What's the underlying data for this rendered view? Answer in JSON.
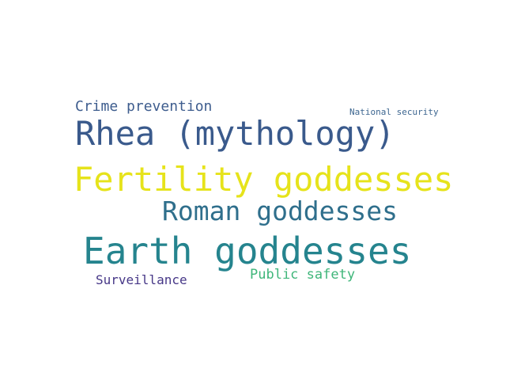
{
  "words": [
    {
      "id": "crime",
      "text": "Crime prevention",
      "color": "#3e5d8e"
    },
    {
      "id": "national",
      "text": "National security",
      "color": "#3d6690"
    },
    {
      "id": "rhea",
      "text": "Rhea (mythology)",
      "color": "#3a5a8c"
    },
    {
      "id": "fertility",
      "text": "Fertility goddesses",
      "color": "#e6e31b"
    },
    {
      "id": "roman",
      "text": "Roman goddesses",
      "color": "#2f6f8c"
    },
    {
      "id": "earth",
      "text": "Earth goddesses",
      "color": "#25848e"
    },
    {
      "id": "public",
      "text": "Public safety",
      "color": "#3fb67a"
    },
    {
      "id": "surv",
      "text": "Surveillance",
      "color": "#463787"
    }
  ]
}
